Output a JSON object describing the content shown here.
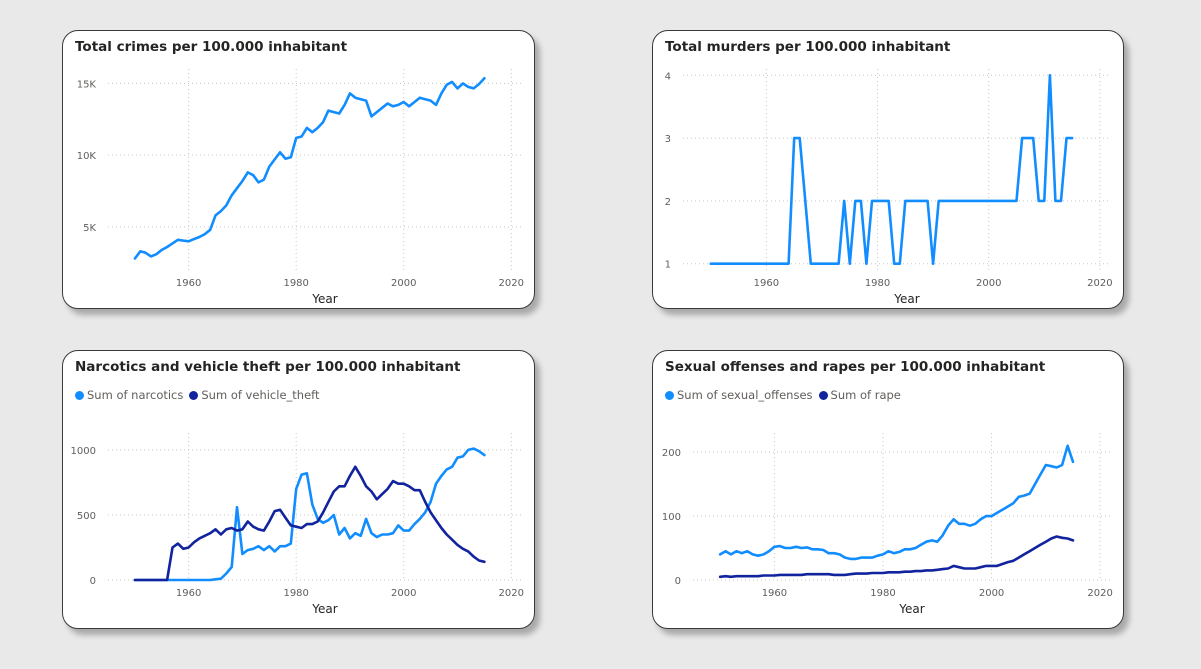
{
  "charts": [
    {
      "card_title": "Total crimes per 100.000 inhabitant",
      "chart_data": {
        "type": "line",
        "title": "Total crimes per 100.000 inhabitant",
        "xlabel": "Year",
        "ylabel": "",
        "xlim": [
          1945,
          2022
        ],
        "ylim": [
          2000,
          16000
        ],
        "x_ticks": [
          1960,
          1980,
          2000,
          2020
        ],
        "y_ticks": [
          5000,
          10000,
          15000
        ],
        "y_tick_labels": [
          "5K",
          "10K",
          "15K"
        ],
        "grid": true,
        "legend": null,
        "series": [
          {
            "name": "",
            "color": "#118dff",
            "x": [
              1950,
              1951,
              1952,
              1953,
              1954,
              1955,
              1956,
              1957,
              1958,
              1959,
              1960,
              1961,
              1962,
              1963,
              1964,
              1965,
              1966,
              1967,
              1968,
              1969,
              1970,
              1971,
              1972,
              1973,
              1974,
              1975,
              1976,
              1977,
              1978,
              1979,
              1980,
              1981,
              1982,
              1983,
              1984,
              1985,
              1986,
              1987,
              1988,
              1989,
              1990,
              1991,
              1992,
              1993,
              1994,
              1995,
              1996,
              1997,
              1998,
              1999,
              2000,
              2001,
              2002,
              2003,
              2004,
              2005,
              2006,
              2007,
              2008,
              2009,
              2010,
              2011,
              2012,
              2013,
              2014,
              2015
            ],
            "y": [
              2800,
              3300,
              3200,
              2950,
              3100,
              3400,
              3600,
              3850,
              4100,
              4050,
              4000,
              4150,
              4300,
              4500,
              4800,
              5800,
              6100,
              6500,
              7200,
              7700,
              8200,
              8800,
              8600,
              8100,
              8300,
              9200,
              9700,
              10200,
              9750,
              9850,
              11200,
              11300,
              11900,
              11600,
              11900,
              12300,
              13100,
              13000,
              12900,
              13500,
              14300,
              14000,
              13900,
              13800,
              12700,
              13000,
              13300,
              13600,
              13400,
              13500,
              13700,
              13400,
              13700,
              14000,
              13900,
              13800,
              13500,
              14300,
              14900,
              15100,
              14650,
              15000,
              14750,
              14650,
              14950,
              15350
            ]
          }
        ]
      }
    },
    {
      "card_title": "Total murders per 100.000 inhabitant",
      "chart_data": {
        "type": "line",
        "title": "Total murders per 100.000 inhabitant",
        "xlabel": "Year",
        "ylabel": "",
        "xlim": [
          1945,
          2022
        ],
        "ylim": [
          0.9,
          4.1
        ],
        "x_ticks": [
          1960,
          1980,
          2000,
          2020
        ],
        "y_ticks": [
          1,
          2,
          3,
          4
        ],
        "y_tick_labels": [
          "1",
          "2",
          "3",
          "4"
        ],
        "grid": true,
        "legend": null,
        "series": [
          {
            "name": "",
            "color": "#118dff",
            "x": [
              1950,
              1951,
              1952,
              1953,
              1954,
              1955,
              1956,
              1957,
              1958,
              1959,
              1960,
              1961,
              1962,
              1963,
              1964,
              1965,
              1966,
              1967,
              1968,
              1969,
              1970,
              1971,
              1972,
              1973,
              1974,
              1975,
              1976,
              1977,
              1978,
              1979,
              1980,
              1981,
              1982,
              1983,
              1984,
              1985,
              1986,
              1987,
              1988,
              1989,
              1990,
              1991,
              1992,
              1993,
              1994,
              1995,
              1996,
              1997,
              1998,
              1999,
              2000,
              2001,
              2002,
              2003,
              2004,
              2005,
              2006,
              2007,
              2008,
              2009,
              2010,
              2011,
              2012,
              2013,
              2014,
              2015
            ],
            "y": [
              1,
              1,
              1,
              1,
              1,
              1,
              1,
              1,
              1,
              1,
              1,
              1,
              1,
              1,
              1,
              3,
              3,
              2,
              1,
              1,
              1,
              1,
              1,
              1,
              2,
              1,
              2,
              2,
              1,
              2,
              2,
              2,
              2,
              1,
              1,
              2,
              2,
              2,
              2,
              2,
              1,
              2,
              2,
              2,
              2,
              2,
              2,
              2,
              2,
              2,
              2,
              2,
              2,
              2,
              2,
              2,
              3,
              3,
              3,
              2,
              2,
              4,
              2,
              2,
              3,
              3
            ]
          }
        ]
      }
    },
    {
      "card_title": "Narcotics and vehicle theft per 100.000 inhabitant",
      "chart_data": {
        "type": "line",
        "title": "Narcotics and vehicle theft per 100.000 inhabitant",
        "xlabel": "Year",
        "ylabel": "",
        "xlim": [
          1945,
          2022
        ],
        "ylim": [
          0,
          1130
        ],
        "x_ticks": [
          1960,
          1980,
          2000,
          2020
        ],
        "y_ticks": [
          0,
          500,
          1000
        ],
        "y_tick_labels": [
          "0",
          "500",
          "1000"
        ],
        "grid": true,
        "legend": "top-left",
        "series": [
          {
            "name": "Sum of narcotics",
            "color": "#118dff",
            "x": [
              1950,
              1951,
              1952,
              1953,
              1954,
              1955,
              1956,
              1957,
              1958,
              1959,
              1960,
              1961,
              1962,
              1963,
              1964,
              1965,
              1966,
              1967,
              1968,
              1969,
              1970,
              1971,
              1972,
              1973,
              1974,
              1975,
              1976,
              1977,
              1978,
              1979,
              1980,
              1981,
              1982,
              1983,
              1984,
              1985,
              1986,
              1987,
              1988,
              1989,
              1990,
              1991,
              1992,
              1993,
              1994,
              1995,
              1996,
              1997,
              1998,
              1999,
              2000,
              2001,
              2002,
              2003,
              2004,
              2005,
              2006,
              2007,
              2008,
              2009,
              2010,
              2011,
              2012,
              2013,
              2014,
              2015
            ],
            "y": [
              0,
              0,
              0,
              0,
              0,
              0,
              0,
              0,
              0,
              0,
              0,
              0,
              0,
              0,
              0,
              5,
              10,
              50,
              100,
              560,
              200,
              230,
              240,
              260,
              230,
              260,
              220,
              260,
              260,
              280,
              700,
              810,
              820,
              580,
              470,
              440,
              460,
              500,
              350,
              400,
              320,
              360,
              340,
              470,
              360,
              330,
              350,
              350,
              360,
              420,
              380,
              380,
              430,
              470,
              520,
              600,
              740,
              800,
              850,
              870,
              940,
              950,
              1000,
              1010,
              990,
              960
            ]
          },
          {
            "name": "Sum of vehicle_theft",
            "color": "#12239e",
            "x": [
              1950,
              1951,
              1952,
              1953,
              1954,
              1955,
              1956,
              1957,
              1958,
              1959,
              1960,
              1961,
              1962,
              1963,
              1964,
              1965,
              1966,
              1967,
              1968,
              1969,
              1970,
              1971,
              1972,
              1973,
              1974,
              1975,
              1976,
              1977,
              1978,
              1979,
              1980,
              1981,
              1982,
              1983,
              1984,
              1985,
              1986,
              1987,
              1988,
              1989,
              1990,
              1991,
              1992,
              1993,
              1994,
              1995,
              1996,
              1997,
              1998,
              1999,
              2000,
              2001,
              2002,
              2003,
              2004,
              2005,
              2006,
              2007,
              2008,
              2009,
              2010,
              2011,
              2012,
              2013,
              2014,
              2015
            ],
            "y": [
              0,
              0,
              0,
              0,
              0,
              0,
              0,
              250,
              280,
              240,
              250,
              290,
              320,
              340,
              360,
              390,
              350,
              390,
              400,
              380,
              390,
              450,
              410,
              390,
              380,
              450,
              530,
              540,
              480,
              420,
              410,
              400,
              430,
              430,
              450,
              520,
              600,
              680,
              720,
              720,
              800,
              870,
              800,
              720,
              680,
              620,
              660,
              700,
              760,
              740,
              740,
              720,
              690,
              690,
              600,
              520,
              460,
              400,
              350,
              310,
              270,
              240,
              220,
              180,
              150,
              140
            ]
          }
        ]
      }
    },
    {
      "card_title": "Sexual offenses and rapes per 100.000 inhabitant",
      "chart_data": {
        "type": "line",
        "title": "Sexual offenses and rapes per 100.000 inhabitant",
        "xlabel": "Year",
        "ylabel": "",
        "xlim": [
          1945,
          2022
        ],
        "ylim": [
          0,
          230
        ],
        "x_ticks": [
          1960,
          1980,
          2000,
          2020
        ],
        "y_ticks": [
          0,
          100,
          200
        ],
        "y_tick_labels": [
          "0",
          "100",
          "200"
        ],
        "grid": true,
        "legend": "top-left",
        "series": [
          {
            "name": "Sum of sexual_offenses",
            "color": "#118dff",
            "x": [
              1950,
              1951,
              1952,
              1953,
              1954,
              1955,
              1956,
              1957,
              1958,
              1959,
              1960,
              1961,
              1962,
              1963,
              1964,
              1965,
              1966,
              1967,
              1968,
              1969,
              1970,
              1971,
              1972,
              1973,
              1974,
              1975,
              1976,
              1977,
              1978,
              1979,
              1980,
              1981,
              1982,
              1983,
              1984,
              1985,
              1986,
              1987,
              1988,
              1989,
              1990,
              1991,
              1992,
              1993,
              1994,
              1995,
              1996,
              1997,
              1998,
              1999,
              2000,
              2001,
              2002,
              2003,
              2004,
              2005,
              2006,
              2007,
              2008,
              2009,
              2010,
              2011,
              2012,
              2013,
              2014,
              2015
            ],
            "y": [
              40,
              45,
              40,
              45,
              42,
              45,
              40,
              38,
              40,
              45,
              52,
              53,
              50,
              50,
              52,
              50,
              51,
              48,
              48,
              47,
              42,
              42,
              40,
              35,
              33,
              33,
              35,
              35,
              35,
              38,
              40,
              45,
              42,
              44,
              48,
              48,
              50,
              55,
              60,
              62,
              60,
              70,
              85,
              95,
              88,
              88,
              85,
              88,
              95,
              100,
              100,
              105,
              110,
              115,
              120,
              130,
              132,
              135,
              150,
              165,
              180,
              178,
              176,
              180,
              210,
              185
            ]
          },
          {
            "name": "Sum of rape",
            "color": "#12239e",
            "x": [
              1950,
              1951,
              1952,
              1953,
              1954,
              1955,
              1956,
              1957,
              1958,
              1959,
              1960,
              1961,
              1962,
              1963,
              1964,
              1965,
              1966,
              1967,
              1968,
              1969,
              1970,
              1971,
              1972,
              1973,
              1974,
              1975,
              1976,
              1977,
              1978,
              1979,
              1980,
              1981,
              1982,
              1983,
              1984,
              1985,
              1986,
              1987,
              1988,
              1989,
              1990,
              1991,
              1992,
              1993,
              1994,
              1995,
              1996,
              1997,
              1998,
              1999,
              2000,
              2001,
              2002,
              2003,
              2004,
              2005,
              2006,
              2007,
              2008,
              2009,
              2010,
              2011,
              2012,
              2013,
              2014,
              2015
            ],
            "y": [
              5,
              6,
              5,
              6,
              6,
              6,
              6,
              6,
              7,
              7,
              7,
              8,
              8,
              8,
              8,
              8,
              9,
              9,
              9,
              9,
              9,
              8,
              8,
              8,
              9,
              10,
              10,
              10,
              11,
              11,
              11,
              12,
              12,
              12,
              13,
              13,
              14,
              14,
              15,
              15,
              16,
              17,
              18,
              22,
              20,
              18,
              18,
              18,
              20,
              22,
              22,
              22,
              25,
              28,
              30,
              35,
              40,
              45,
              50,
              55,
              60,
              65,
              68,
              66,
              65,
              62
            ]
          }
        ]
      }
    }
  ]
}
